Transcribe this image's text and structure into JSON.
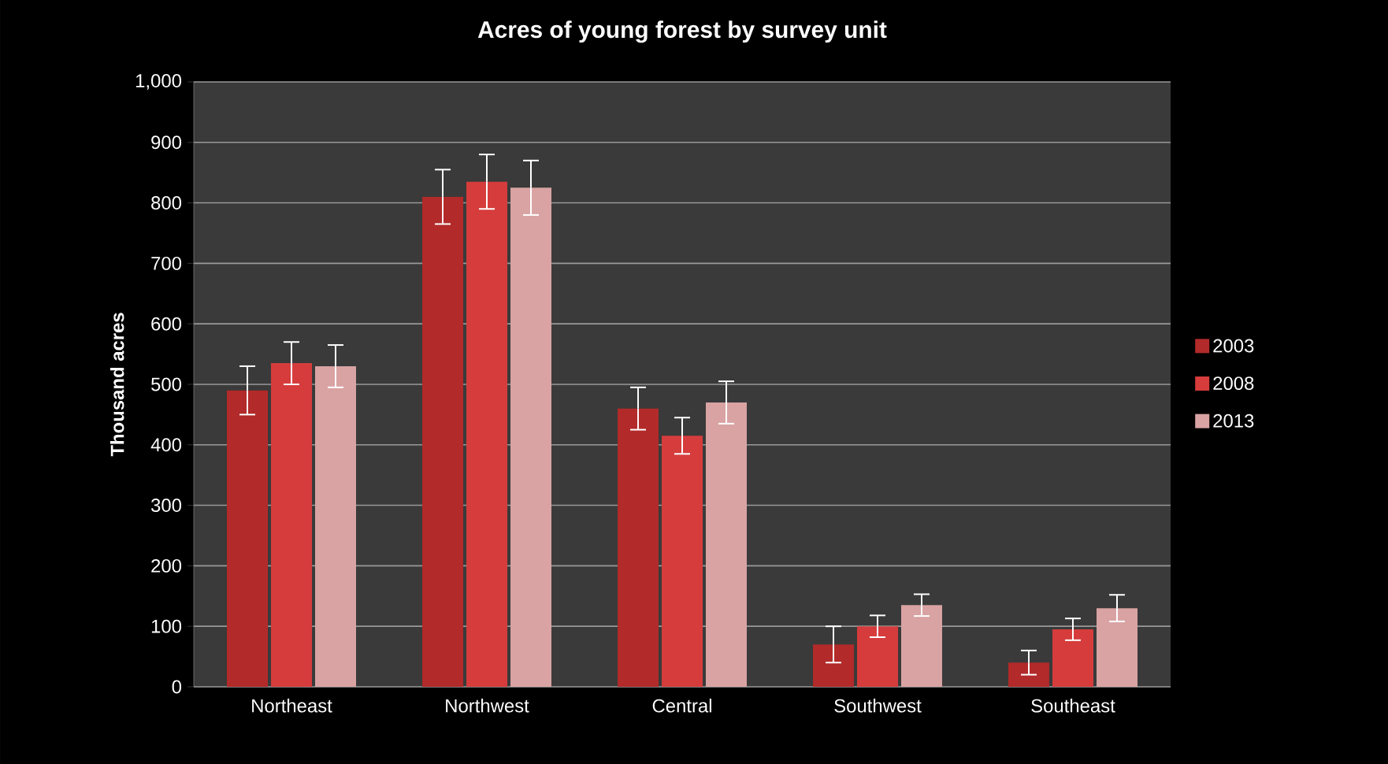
{
  "chart_data": {
    "type": "bar",
    "title": "Acres of young forest by survey unit",
    "ylabel": "Thousand  acres",
    "categories": [
      "Northeast",
      "Northwest",
      "Central",
      "Southwest",
      "Southeast"
    ],
    "series": [
      {
        "name": "2003",
        "color": "#b22a2a",
        "values": [
          490,
          810,
          460,
          70,
          40
        ],
        "errors": [
          40,
          45,
          35,
          30,
          20
        ]
      },
      {
        "name": "2008",
        "color": "#d63c3c",
        "values": [
          535,
          835,
          415,
          100,
          95
        ],
        "errors": [
          35,
          45,
          30,
          18,
          18
        ]
      },
      {
        "name": "2013",
        "color": "#d9a3a3",
        "values": [
          530,
          825,
          470,
          135,
          130
        ],
        "errors": [
          35,
          45,
          35,
          18,
          22
        ]
      }
    ],
    "ylim": [
      0,
      1000
    ],
    "yticks": [
      0,
      100,
      200,
      300,
      400,
      500,
      600,
      700,
      800,
      900,
      {
        "value": 1000,
        "label": "1,000"
      }
    ],
    "grid": "y",
    "legend": "right"
  }
}
